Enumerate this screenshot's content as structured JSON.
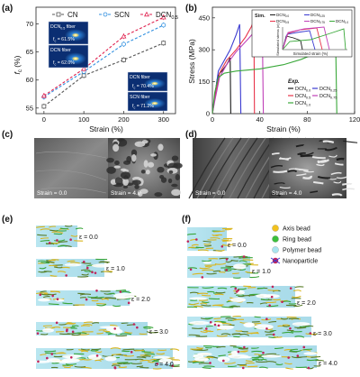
{
  "panel_letters": {
    "a": "(a)",
    "b": "(b)",
    "c": "(c)",
    "d": "(d)",
    "e": "(e)",
    "f": "(f)"
  },
  "chart_data": [
    {
      "type": "line",
      "panel": "(a)",
      "xlabel": "Strain (%)",
      "ylabel": "f_c (%)",
      "xlim": [
        -20,
        330
      ],
      "ylim": [
        54,
        73
      ],
      "xticks": [
        0,
        100,
        200,
        300
      ],
      "yticks": [
        55,
        60,
        65,
        70
      ],
      "legend_placement": "top",
      "series": [
        {
          "name": "CN",
          "color": "#555555",
          "x": [
            0,
            100,
            200,
            300
          ],
          "y": [
            55.3,
            60.8,
            63.6,
            66.6
          ]
        },
        {
          "name": "SCN",
          "color": "#2f8fe0",
          "x": [
            0,
            100,
            200,
            300
          ],
          "y": [
            57.0,
            61.5,
            66.4,
            69.8
          ]
        },
        {
          "name": "DCN0.5",
          "color": "#e0224f",
          "x": [
            0,
            100,
            200,
            300
          ],
          "y": [
            57.2,
            62.0,
            67.8,
            71.2
          ]
        }
      ],
      "legend": [
        {
          "name": "CN",
          "sub": ""
        },
        {
          "name": "SCN",
          "sub": ""
        },
        {
          "name": "DCN",
          "sub": "0.5"
        }
      ],
      "insets": [
        {
          "label": "DCN0.5 fiber",
          "label_main": "DCN",
          "label_sub": "0.5",
          "label_tail": " fiber",
          "value": "f_c = 61.5%",
          "value_main": "f",
          "value_sub": "c",
          "value_tail": " = 61.5%"
        },
        {
          "label": "DCN fiber",
          "label_main": "DCN fiber",
          "label_sub": "",
          "label_tail": "",
          "value": "f_c = 62.0%",
          "value_main": "f",
          "value_sub": "c",
          "value_tail": " = 62.0%"
        },
        {
          "label": "DCN fiber",
          "label_main": "DCN fiber",
          "label_sub": "",
          "label_tail": "",
          "value": "f_c = 70.4%",
          "value_main": "f",
          "value_sub": "c",
          "value_tail": " = 70.4%"
        },
        {
          "label": "SCN fiber",
          "label_main": "SCN fiber",
          "label_sub": "",
          "label_tail": "",
          "value": "f_c = 71.2%",
          "value_main": "f",
          "value_sub": "c",
          "value_tail": " = 71.2%"
        }
      ]
    },
    {
      "type": "line",
      "panel": "(b)",
      "xlabel": "Strain (%)",
      "ylabel": "Stress (MPa)",
      "xlim": [
        0,
        120
      ],
      "ylim": [
        0,
        500
      ],
      "xticks": [
        0,
        40,
        80,
        120
      ],
      "yticks": [
        0,
        150,
        300,
        450
      ],
      "legend_title": "Exp.",
      "legend_placement": "bottom-right",
      "series": [
        {
          "name": "DCN0.0",
          "label_main": "DCN",
          "label_sub": "0.0",
          "color": "#1a1a1a",
          "x": [
            0,
            1,
            4,
            6,
            8,
            10,
            12,
            14,
            15,
            15.5
          ],
          "y": [
            0,
            40,
            160,
            190,
            200,
            215,
            230,
            250,
            262,
            0
          ]
        },
        {
          "name": "DCN0.25",
          "label_main": "DCN",
          "label_sub": "0.25",
          "color": "#3a3ad0",
          "x": [
            0,
            2,
            5,
            10,
            15,
            20,
            23,
            24
          ],
          "y": [
            0,
            80,
            200,
            250,
            300,
            370,
            420,
            0
          ]
        },
        {
          "name": "DCN0.5",
          "label_main": "DCN",
          "label_sub": "0.5",
          "color": "#e8334a",
          "x": [
            0,
            2,
            6,
            12,
            20,
            28,
            33,
            35,
            35.5
          ],
          "y": [
            0,
            70,
            190,
            250,
            300,
            360,
            410,
            440,
            0
          ]
        },
        {
          "name": "DCN0.75",
          "label_main": "DCN",
          "label_sub": "0.75",
          "color": "#c040b8",
          "x": [
            0,
            2,
            6,
            12,
            20,
            30,
            38,
            42,
            43
          ],
          "y": [
            0,
            60,
            170,
            230,
            290,
            350,
            400,
            450,
            0
          ]
        },
        {
          "name": "DCN1.0",
          "label_main": "DCN",
          "label_sub": "1.0",
          "color": "#3aa83a",
          "x": [
            0,
            2,
            5,
            10,
            20,
            40,
            60,
            75,
            88,
            100,
            104,
            105
          ],
          "y": [
            0,
            100,
            170,
            190,
            200,
            210,
            230,
            255,
            285,
            335,
            340,
            0
          ]
        }
      ],
      "inset": {
        "title": "Sim.",
        "xlabel": "Simulated strain (%)",
        "ylabel": "Simulated stress (σ)",
        "series": [
          {
            "name": "DCN0.0",
            "label_main": "DCN",
            "label_sub": "0.0",
            "color": "#1a1a1a"
          },
          {
            "name": "DCN0.25",
            "label_main": "DCN",
            "label_sub": "0.25",
            "color": "#3a3ad0"
          },
          {
            "name": "DCN0.5",
            "label_main": "DCN",
            "label_sub": "0.5",
            "color": "#e8334a"
          },
          {
            "name": "DCN0.75",
            "label_main": "DCN",
            "label_sub": "0.75",
            "color": "#c040b8"
          },
          {
            "name": "DCN1.0",
            "label_main": "DCN",
            "label_sub": "1.0",
            "color": "#3aa83a"
          }
        ]
      }
    }
  ],
  "micrographs": {
    "c": [
      {
        "caption": "Strain = 0.0"
      },
      {
        "caption": "Strain = 4.0"
      }
    ],
    "d": [
      {
        "caption": "Strain = 0.0"
      },
      {
        "caption": "Strain = 4.0"
      }
    ]
  },
  "simulations": {
    "strain_labels": [
      "ε = 0.0",
      "ε = 1.0",
      "ε = 2.0",
      "ε = 3.0",
      "ε = 4.0"
    ],
    "legend": [
      {
        "name": "Axis bead",
        "color": "#f2c21e"
      },
      {
        "name": "Ring bead",
        "color": "#3cbf3c"
      },
      {
        "name": "Polymer bead",
        "color": "#a9e4ef"
      },
      {
        "name": "Nanoparticle",
        "color": "#c0245a"
      }
    ]
  }
}
